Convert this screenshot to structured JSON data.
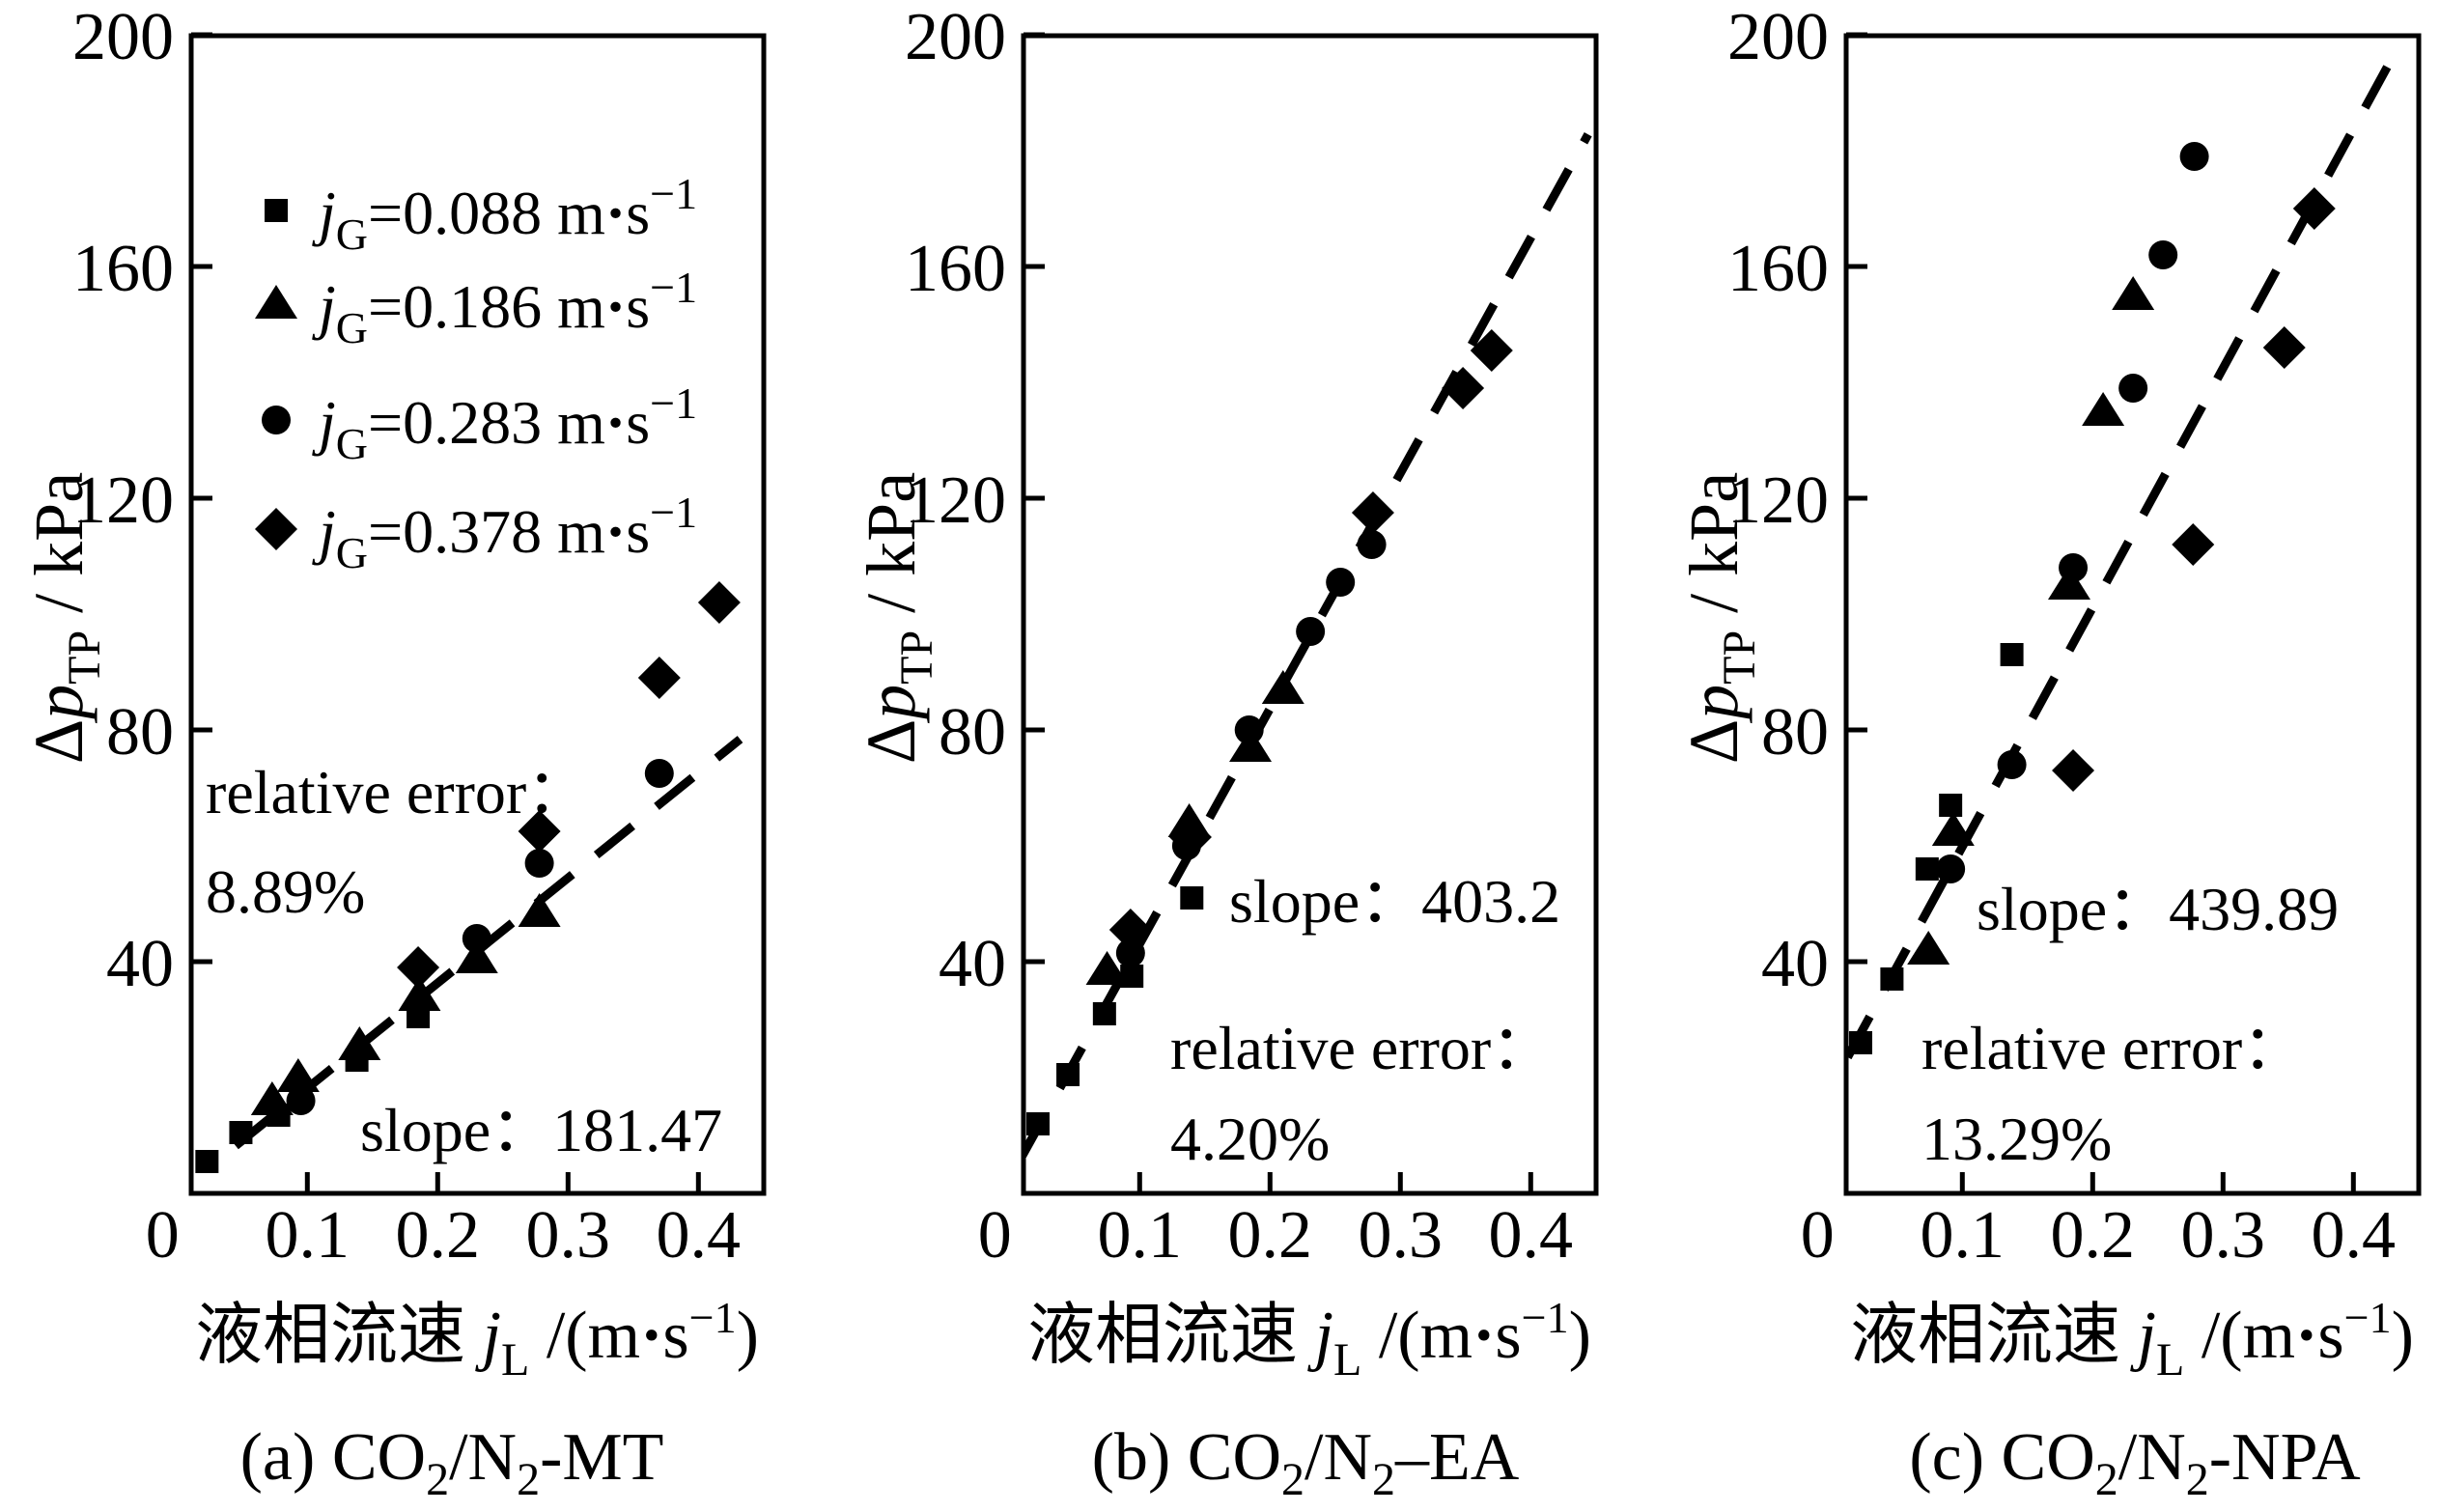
{
  "figure": {
    "background": "#ffffff",
    "ink": "#000000"
  },
  "legend": {
    "var": "j",
    "sub": "G",
    "eq": "=",
    "unit_pre": " m",
    "dot": "·",
    "unit_s": "s",
    "sup": "−1",
    "items": [
      {
        "marker": "square",
        "value": "0.088"
      },
      {
        "marker": "triangle",
        "value": "0.186"
      },
      {
        "marker": "circle",
        "value": "0.283"
      },
      {
        "marker": "diamond",
        "value": "0.378"
      }
    ]
  },
  "axis": {
    "x_title": {
      "cjk": "液相流速 ",
      "var": "j",
      "sub": "L",
      "pre": " /(m",
      "dot": "·",
      "s": "s",
      "sup": "−1",
      "close": ")"
    },
    "y_title": {
      "delta": "Δ",
      "var": "p",
      "sub": "TP",
      "rest": " / kPa"
    },
    "x_zero_label": "0",
    "x_tick_labels": [
      "0.1",
      "0.2",
      "0.3",
      "0.4"
    ],
    "y_tick_labels": [
      "40",
      "80",
      "120",
      "160",
      "200"
    ]
  },
  "chart_data": [
    {
      "panel": "a",
      "type": "scatter",
      "caption": {
        "pre": "(a) CO",
        "sub1": "2",
        "mid": "/N",
        "sub2": "2",
        "suffix": "-MT"
      },
      "slope": 181.47,
      "relative_error": "8.89%",
      "annotations": {
        "slope_label": "slope",
        "colon": "：",
        "slope_value": "181.47",
        "rel_label": "relative error",
        "rel_value": "8.89%"
      },
      "xlim": [
        0,
        0.45
      ],
      "ylim": [
        0,
        200
      ],
      "xticks": [
        0.1,
        0.2,
        0.3,
        0.4
      ],
      "yticks": [
        40,
        80,
        120,
        160,
        200
      ],
      "fit_line": {
        "x1": 0.045,
        "y1": 8.2,
        "x2": 0.432,
        "y2": 78.4
      },
      "series": [
        {
          "name": "jG=0.088 m·s−1",
          "marker": "square",
          "points": [
            [
              0.023,
              5.5
            ],
            [
              0.049,
              10.5
            ],
            [
              0.078,
              13.5
            ],
            [
              0.138,
              23.0
            ],
            [
              0.185,
              30.5
            ]
          ]
        },
        {
          "name": "jG=0.186 m·s−1",
          "marker": "triangle",
          "points": [
            [
              0.073,
              16.0
            ],
            [
              0.093,
              20.0
            ],
            [
              0.14,
              25.5
            ],
            [
              0.186,
              34.0
            ],
            [
              0.23,
              40.5
            ],
            [
              0.278,
              48.5
            ]
          ]
        },
        {
          "name": "jG=0.283 m·s−1",
          "marker": "circle",
          "points": [
            [
              0.095,
              16.0
            ],
            [
              0.23,
              44.0
            ],
            [
              0.278,
              57.0
            ],
            [
              0.37,
              72.5
            ]
          ]
        },
        {
          "name": "jG=0.378 m·s−1",
          "marker": "diamond",
          "points": [
            [
              0.185,
              39.0
            ],
            [
              0.278,
              62.5
            ],
            [
              0.37,
              89.0
            ],
            [
              0.416,
              102.0
            ]
          ]
        }
      ]
    },
    {
      "panel": "b",
      "type": "scatter",
      "caption": {
        "pre": "(b) CO",
        "sub1": "2",
        "mid": "/N",
        "sub2": "2",
        "suffix": "–EA"
      },
      "slope": 403.2,
      "relative_error": "4.20%",
      "annotations": {
        "slope_label": "slope",
        "colon": "：",
        "slope_value": "403.2",
        "rel_label": "relative error",
        "rel_value": "4.20%"
      },
      "xlim": [
        0,
        0.45
      ],
      "ylim": [
        0,
        200
      ],
      "xticks": [
        0.1,
        0.2,
        0.3,
        0.4
      ],
      "yticks": [
        40,
        80,
        120,
        160,
        200
      ],
      "fit_line": {
        "x1": 0.01,
        "y1": 6.5,
        "x2": 0.444,
        "y2": 182.8
      },
      "series": [
        {
          "name": "jG=0.088 m·s−1",
          "marker": "square",
          "points": [
            [
              0.022,
              12.0
            ],
            [
              0.045,
              20.5
            ],
            [
              0.073,
              31.0
            ],
            [
              0.094,
              37.5
            ],
            [
              0.14,
              51.0
            ]
          ]
        },
        {
          "name": "jG=0.186 m·s−1",
          "marker": "triangle",
          "points": [
            [
              0.075,
              38.5
            ],
            [
              0.138,
              64.0
            ],
            [
              0.185,
              77.0
            ],
            [
              0.21,
              87.0
            ]
          ]
        },
        {
          "name": "jG=0.283 m·s−1",
          "marker": "circle",
          "points": [
            [
              0.093,
              41.5
            ],
            [
              0.136,
              60.0
            ],
            [
              0.184,
              80.0
            ],
            [
              0.231,
              97.0
            ],
            [
              0.254,
              105.5
            ],
            [
              0.278,
              112.0
            ]
          ]
        },
        {
          "name": "jG=0.378 m·s−1",
          "marker": "diamond",
          "points": [
            [
              0.093,
              45.5
            ],
            [
              0.139,
              61.5
            ],
            [
              0.279,
              117.5
            ],
            [
              0.348,
              139.0
            ],
            [
              0.37,
              145.5
            ]
          ]
        }
      ]
    },
    {
      "panel": "c",
      "type": "scatter",
      "caption": {
        "pre": "(c) CO",
        "sub1": "2",
        "mid": "/N",
        "sub2": "2",
        "suffix": "-NPA"
      },
      "slope": 439.89,
      "relative_error": "13.29%",
      "annotations": {
        "slope_label": "slope",
        "colon": "：",
        "slope_value": "439.89",
        "rel_label": "relative error",
        "rel_value": "13.29%"
      },
      "xlim": [
        0,
        0.45
      ],
      "ylim": [
        0,
        200
      ],
      "xticks": [
        0.1,
        0.2,
        0.3,
        0.4
      ],
      "yticks": [
        40,
        80,
        120,
        160,
        200
      ],
      "fit_line": {
        "x1": 0.012,
        "y1": 23.5,
        "x2": 0.437,
        "y2": 199.0
      },
      "series": [
        {
          "name": "jG=0.088 m·s−1",
          "marker": "square",
          "points": [
            [
              0.022,
              26.0
            ],
            [
              0.046,
              37.0
            ],
            [
              0.073,
              56.0
            ],
            [
              0.091,
              67.0
            ],
            [
              0.138,
              93.0
            ]
          ]
        },
        {
          "name": "jG=0.186 m·s−1",
          "marker": "triangle",
          "points": [
            [
              0.074,
              42.0
            ],
            [
              0.093,
              62.5
            ],
            [
              0.182,
              105.0
            ],
            [
              0.208,
              135.0
            ],
            [
              0.231,
              155.0
            ]
          ]
        },
        {
          "name": "jG=0.283 m·s−1",
          "marker": "circle",
          "points": [
            [
              0.091,
              56.0
            ],
            [
              0.138,
              74.0
            ],
            [
              0.185,
              108.0
            ],
            [
              0.231,
              139.0
            ],
            [
              0.254,
              162.0
            ],
            [
              0.278,
              179.0
            ]
          ]
        },
        {
          "name": "jG=0.378 m·s−1",
          "marker": "diamond",
          "points": [
            [
              0.185,
              73.0
            ],
            [
              0.277,
              112.0
            ],
            [
              0.347,
              146.0
            ],
            [
              0.37,
              170.0
            ]
          ]
        }
      ]
    }
  ]
}
